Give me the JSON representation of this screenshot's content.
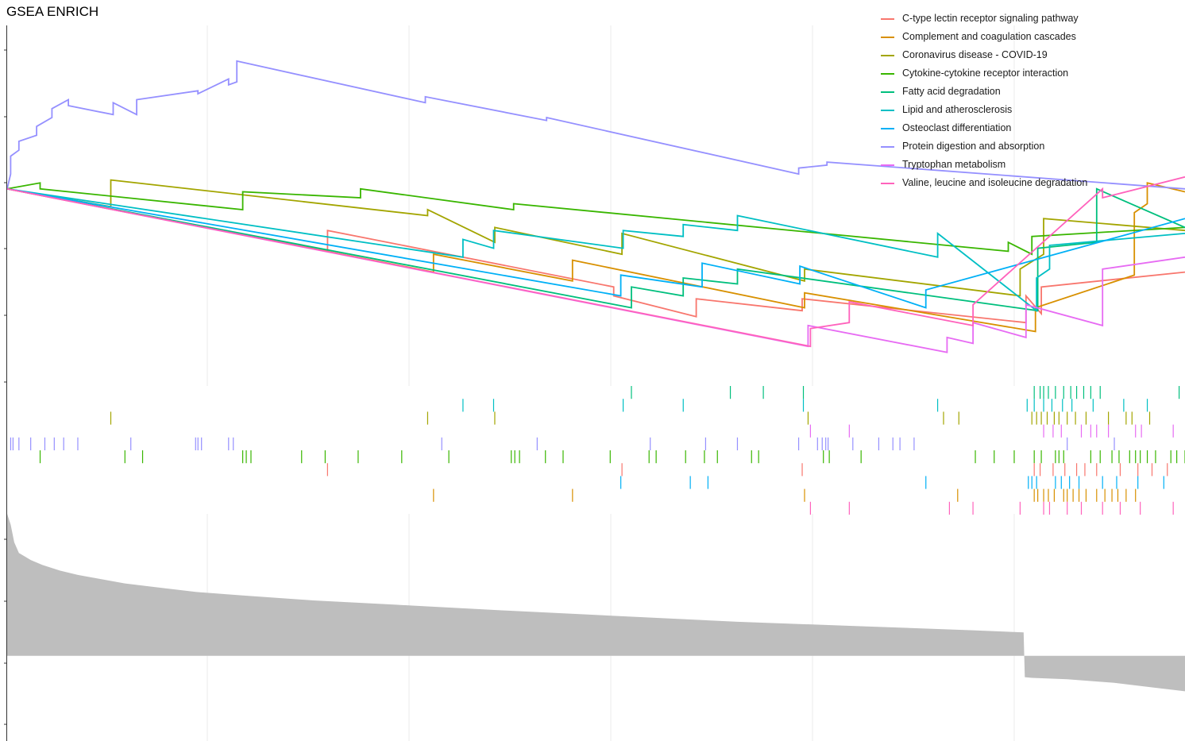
{
  "title": "GSEA ENRICH",
  "chart_data": [
    {
      "type": "line",
      "panel": "running_enrichment_score",
      "title": "GSEA ENRICH",
      "xlabel": "",
      "ylabel": "",
      "xlim": [
        0,
        1000
      ],
      "ylim": [
        -0.65,
        0.55
      ],
      "grid": true,
      "legend": "top-right",
      "series": [
        {
          "name": "C-type lectin receptor signaling pathway",
          "color": "#F8766D",
          "x": [
            0,
            272,
            272,
            515,
            515,
            585,
            585,
            675,
            675,
            865,
            865,
            878,
            878,
            1000
          ],
          "y": [
            0,
            -0.21,
            -0.14,
            -0.33,
            -0.36,
            -0.43,
            -0.37,
            -0.41,
            -0.37,
            -0.45,
            -0.36,
            -0.42,
            -0.33,
            -0.28
          ]
        },
        {
          "name": "Complement and coagulation cascades",
          "color": "#D89000",
          "x": [
            0,
            362,
            362,
            480,
            480,
            677,
            677,
            873,
            873,
            957,
            957,
            968,
            968,
            1000
          ],
          "y": [
            0,
            -0.28,
            -0.22,
            -0.31,
            -0.24,
            -0.4,
            -0.35,
            -0.48,
            -0.4,
            -0.29,
            -0.08,
            -0.05,
            0.02,
            -0.01
          ]
        },
        {
          "name": "Coronavirus disease - COVID-19",
          "color": "#A3A500",
          "x": [
            0,
            88,
            88,
            357,
            357,
            414,
            414,
            522,
            522,
            677,
            677,
            860,
            860,
            880,
            880,
            1000
          ],
          "y": [
            0,
            -0.06,
            0.03,
            -0.09,
            -0.07,
            -0.18,
            -0.13,
            -0.22,
            -0.15,
            -0.31,
            -0.27,
            -0.36,
            -0.27,
            -0.22,
            -0.1,
            -0.14
          ]
        },
        {
          "name": "Cytokine-cytokine receptor interaction",
          "color": "#39B600",
          "x": [
            0,
            28,
            28,
            200,
            200,
            300,
            300,
            430,
            430,
            850,
            850,
            870,
            870,
            1000
          ],
          "y": [
            0,
            0.02,
            0.0,
            -0.07,
            -0.01,
            -0.03,
            0.0,
            -0.07,
            -0.05,
            -0.21,
            -0.18,
            -0.22,
            -0.16,
            -0.13
          ]
        },
        {
          "name": "Fatty acid degradation",
          "color": "#00BF7D",
          "x": [
            0,
            530,
            530,
            574,
            574,
            620,
            620,
            875,
            875,
            925,
            925,
            1000
          ],
          "y": [
            0,
            -0.4,
            -0.33,
            -0.36,
            -0.3,
            -0.32,
            -0.27,
            -0.41,
            -0.2,
            -0.18,
            0.0,
            -0.13
          ]
        },
        {
          "name": "Lipid and atherosclerosis",
          "color": "#00BFC4",
          "x": [
            0,
            387,
            387,
            413,
            413,
            523,
            523,
            574,
            574,
            620,
            620,
            790,
            790,
            874,
            874,
            885,
            885,
            1000
          ],
          "y": [
            0,
            -0.23,
            -0.17,
            -0.2,
            -0.14,
            -0.2,
            -0.14,
            -0.16,
            -0.12,
            -0.14,
            -0.09,
            -0.23,
            -0.15,
            -0.41,
            -0.3,
            -0.27,
            -0.19,
            -0.15
          ]
        },
        {
          "name": "Osteoclast differentiation",
          "color": "#00B0F6",
          "x": [
            0,
            521,
            521,
            590,
            590,
            673,
            673,
            780,
            780,
            1000
          ],
          "y": [
            0,
            -0.36,
            -0.29,
            -0.33,
            -0.25,
            -0.32,
            -0.26,
            -0.4,
            -0.34,
            -0.1
          ]
        },
        {
          "name": "Protein digestion and absorption",
          "color": "#9590FF",
          "x": [
            0,
            3,
            3,
            10,
            10,
            25,
            25,
            38,
            38,
            52,
            52,
            90,
            90,
            110,
            110,
            162,
            162,
            188,
            188,
            195,
            195,
            355,
            355,
            458,
            458,
            672,
            672,
            696,
            696,
            1000
          ],
          "y": [
            0,
            0.05,
            0.11,
            0.13,
            0.16,
            0.18,
            0.21,
            0.24,
            0.27,
            0.3,
            0.28,
            0.25,
            0.29,
            0.25,
            0.3,
            0.33,
            0.32,
            0.37,
            0.35,
            0.36,
            0.43,
            0.29,
            0.31,
            0.23,
            0.24,
            0.05,
            0.07,
            0.08,
            0.09,
            0.0
          ]
        },
        {
          "name": "Tryptophan metabolism",
          "color": "#E76BF3",
          "x": [
            0,
            680,
            680,
            798,
            798,
            820,
            820,
            865,
            865,
            930,
            930,
            1000
          ],
          "y": [
            0,
            -0.53,
            -0.46,
            -0.55,
            -0.5,
            -0.52,
            -0.45,
            -0.5,
            -0.39,
            -0.46,
            -0.27,
            -0.23
          ]
        },
        {
          "name": "Valine, leucine and isoleucine degradation",
          "color": "#FF62BC",
          "x": [
            0,
            682,
            682,
            715,
            715,
            820,
            820,
            930,
            930,
            1000
          ],
          "y": [
            0,
            -0.53,
            -0.47,
            -0.45,
            -0.38,
            -0.46,
            -0.39,
            0.0,
            -0.03,
            0.04
          ]
        }
      ]
    },
    {
      "type": "scatter",
      "panel": "gene_hit_positions",
      "xlim": [
        0,
        1000
      ],
      "legend": "none",
      "series": [
        {
          "name": "Fatty acid degradation",
          "color": "#00BF7D",
          "x": [
            530,
            614,
            642,
            676,
            872,
            877,
            880,
            884,
            890,
            897,
            903,
            908,
            914,
            920,
            928,
            995
          ]
        },
        {
          "name": "Lipid and atherosclerosis",
          "color": "#00BFC4",
          "x": [
            387,
            413,
            523,
            574,
            676,
            790,
            866,
            872,
            880,
            887,
            896,
            904,
            922,
            948,
            968
          ]
        },
        {
          "name": "Coronavirus disease - COVID-19",
          "color": "#A3A500",
          "x": [
            88,
            357,
            414,
            680,
            795,
            808,
            870,
            874,
            878,
            883,
            889,
            893,
            900,
            907,
            916,
            935,
            950,
            955,
            970
          ]
        },
        {
          "name": "Tryptophan metabolism",
          "color": "#E76BF3",
          "x": [
            682,
            715,
            880,
            888,
            895,
            912,
            920,
            925,
            935,
            958,
            963,
            990
          ]
        },
        {
          "name": "Protein digestion and absorption",
          "color": "#9590FF",
          "x": [
            3,
            5,
            10,
            20,
            32,
            40,
            48,
            60,
            105,
            160,
            162,
            165,
            188,
            192,
            369,
            450,
            546,
            593,
            620,
            672,
            688,
            692,
            695,
            697,
            718,
            740,
            752,
            758,
            770,
            900,
            940
          ]
        },
        {
          "name": "Cytokine-cytokine receptor interaction",
          "color": "#39B600",
          "x": [
            28,
            100,
            115,
            200,
            203,
            207,
            250,
            270,
            298,
            335,
            375,
            428,
            431,
            435,
            457,
            472,
            512,
            545,
            551,
            576,
            592,
            603,
            632,
            638,
            693,
            698,
            725,
            822,
            838,
            855,
            872,
            878,
            890,
            893,
            897,
            920,
            928,
            938,
            944,
            953,
            958,
            962,
            968,
            975,
            988,
            993,
            1000
          ]
        },
        {
          "name": "C-type lectin receptor signaling pathway",
          "color": "#F8766D",
          "x": [
            272,
            522,
            675,
            872,
            877,
            888,
            898,
            908,
            915,
            925,
            945,
            960,
            972,
            985
          ]
        },
        {
          "name": "Osteoclast differentiation",
          "color": "#00B0F6",
          "x": [
            521,
            580,
            595,
            780,
            867,
            870,
            874,
            890,
            895,
            902,
            910,
            930,
            942,
            960,
            982
          ]
        },
        {
          "name": "Complement and coagulation cascades",
          "color": "#D89000",
          "x": [
            362,
            480,
            677,
            807,
            872,
            875,
            880,
            884,
            889,
            897,
            900,
            905,
            910,
            916,
            925,
            932,
            938,
            943,
            950,
            958
          ]
        },
        {
          "name": "Valine, leucine and isoleucine degradation",
          "color": "#FF62BC",
          "x": [
            682,
            715,
            800,
            820,
            860,
            880,
            885,
            900,
            912,
            930,
            945,
            962,
            990
          ]
        }
      ]
    },
    {
      "type": "area",
      "panel": "ranked_list_metric",
      "xlim": [
        0,
        1000
      ],
      "ylim": [
        -1.2,
        2.0
      ],
      "color": "#BEBEBE",
      "x": [
        0,
        3,
        6,
        10,
        15,
        20,
        30,
        45,
        60,
        80,
        100,
        130,
        160,
        200,
        260,
        330,
        420,
        520,
        620,
        720,
        820,
        863,
        864,
        870,
        900,
        940,
        970,
        1000
      ],
      "y": [
        2.0,
        1.85,
        1.6,
        1.45,
        1.4,
        1.35,
        1.28,
        1.2,
        1.14,
        1.08,
        1.02,
        0.96,
        0.9,
        0.85,
        0.78,
        0.72,
        0.64,
        0.56,
        0.48,
        0.42,
        0.36,
        0.33,
        -0.3,
        -0.31,
        -0.33,
        -0.38,
        -0.44,
        -0.5
      ]
    }
  ]
}
